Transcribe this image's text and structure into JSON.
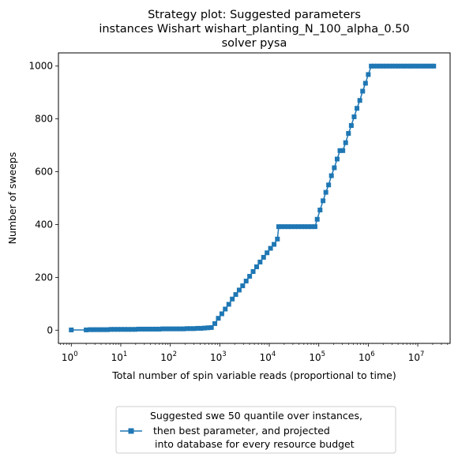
{
  "chart_data": {
    "type": "line",
    "title_lines": [
      "Strategy plot: Suggested parameters",
      "instances Wishart wishart_planting_N_100_alpha_0.50",
      "solver pysa"
    ],
    "xlabel": "Total number of spin variable reads (proportional to time)",
    "ylabel": "Number of sweeps",
    "x_scale": "log",
    "xlim": [
      0.55,
      45000000
    ],
    "ylim": [
      -50,
      1050
    ],
    "x_ticks": [
      {
        "value": 1,
        "base": "10",
        "exp": "0"
      },
      {
        "value": 10,
        "base": "10",
        "exp": "1"
      },
      {
        "value": 100,
        "base": "10",
        "exp": "2"
      },
      {
        "value": 1000,
        "base": "10",
        "exp": "3"
      },
      {
        "value": 10000,
        "base": "10",
        "exp": "4"
      },
      {
        "value": 100000,
        "base": "10",
        "exp": "5"
      },
      {
        "value": 1000000,
        "base": "10",
        "exp": "6"
      },
      {
        "value": 10000000,
        "base": "10",
        "exp": "7"
      }
    ],
    "y_ticks": [
      {
        "value": 0,
        "label": "0"
      },
      {
        "value": 200,
        "label": "200"
      },
      {
        "value": 400,
        "label": "400"
      },
      {
        "value": 600,
        "label": "600"
      },
      {
        "value": 800,
        "label": "800"
      },
      {
        "value": 1000,
        "label": "1000"
      }
    ],
    "grid": false,
    "legend_position": "below",
    "series": [
      {
        "color": "#1f77b4",
        "marker": "square",
        "legend_label_lines": [
          "Suggested swe 50 quantile over instances,",
          "then best parameter, and projected",
          "into database for every resource budget"
        ],
        "points": [
          [
            1,
            1
          ],
          [
            2,
            1
          ],
          [
            2.4,
            2
          ],
          [
            2.8,
            2
          ],
          [
            3.3,
            2
          ],
          [
            3.9,
            2
          ],
          [
            4.6,
            2
          ],
          [
            5.4,
            2
          ],
          [
            6.3,
            3
          ],
          [
            7.4,
            3
          ],
          [
            8.7,
            3
          ],
          [
            10.2,
            3
          ],
          [
            12,
            3
          ],
          [
            14,
            3
          ],
          [
            16.5,
            3
          ],
          [
            19.4,
            3
          ],
          [
            22.8,
            4
          ],
          [
            26.8,
            4
          ],
          [
            31.5,
            4
          ],
          [
            37,
            4
          ],
          [
            43.5,
            4
          ],
          [
            51,
            4
          ],
          [
            60,
            4
          ],
          [
            70.5,
            5
          ],
          [
            83,
            5
          ],
          [
            97.5,
            5
          ],
          [
            114,
            5
          ],
          [
            134,
            5
          ],
          [
            158,
            5
          ],
          [
            186,
            5
          ],
          [
            218,
            6
          ],
          [
            256,
            6
          ],
          [
            301,
            6
          ],
          [
            354,
            7
          ],
          [
            416,
            7
          ],
          [
            489,
            8
          ],
          [
            575,
            9
          ],
          [
            676,
            10
          ],
          [
            795,
            25
          ],
          [
            935,
            45
          ],
          [
            1100,
            62
          ],
          [
            1290,
            80
          ],
          [
            1520,
            98
          ],
          [
            1790,
            118
          ],
          [
            2100,
            135
          ],
          [
            2470,
            152
          ],
          [
            2900,
            168
          ],
          [
            3410,
            186
          ],
          [
            4010,
            204
          ],
          [
            4720,
            222
          ],
          [
            5550,
            240
          ],
          [
            6520,
            258
          ],
          [
            7670,
            276
          ],
          [
            9010,
            293
          ],
          [
            10600,
            310
          ],
          [
            12500,
            325
          ],
          [
            14600,
            345
          ],
          [
            15500,
            392
          ],
          [
            17500,
            392
          ],
          [
            20500,
            392
          ],
          [
            24000,
            392
          ],
          [
            28000,
            392
          ],
          [
            33000,
            392
          ],
          [
            38500,
            392
          ],
          [
            45000,
            392
          ],
          [
            52500,
            392
          ],
          [
            61500,
            392
          ],
          [
            72000,
            392
          ],
          [
            84000,
            392
          ],
          [
            93000,
            420
          ],
          [
            106000,
            455
          ],
          [
            122000,
            490
          ],
          [
            139000,
            522
          ],
          [
            158000,
            550
          ],
          [
            180000,
            585
          ],
          [
            206000,
            615
          ],
          [
            235000,
            648
          ],
          [
            268000,
            680
          ],
          [
            306000,
            680
          ],
          [
            349000,
            710
          ],
          [
            398000,
            745
          ],
          [
            454000,
            775
          ],
          [
            518000,
            808
          ],
          [
            591000,
            840
          ],
          [
            675000,
            870
          ],
          [
            770000,
            905
          ],
          [
            878000,
            935
          ],
          [
            1000000,
            968
          ],
          [
            1150000,
            1000
          ],
          [
            1320000,
            1000
          ],
          [
            1520000,
            1000
          ],
          [
            1750000,
            1000
          ],
          [
            2000000,
            1000
          ],
          [
            2300000,
            1000
          ],
          [
            2650000,
            1000
          ],
          [
            3050000,
            1000
          ],
          [
            3500000,
            1000
          ],
          [
            4000000,
            1000
          ],
          [
            4600000,
            1000
          ],
          [
            5300000,
            1000
          ],
          [
            6100000,
            1000
          ],
          [
            7000000,
            1000
          ],
          [
            8000000,
            1000
          ],
          [
            9200000,
            1000
          ],
          [
            10600000,
            1000
          ],
          [
            12200000,
            1000
          ],
          [
            14000000,
            1000
          ],
          [
            16000000,
            1000
          ],
          [
            18500000,
            1000
          ],
          [
            21000000,
            1000
          ]
        ]
      }
    ]
  }
}
